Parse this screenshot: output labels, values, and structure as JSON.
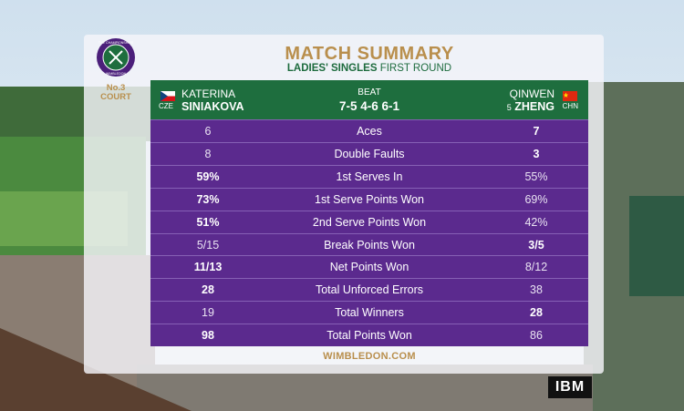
{
  "logo": {
    "top": "THE CHAMPIONSHIPS",
    "bottom": "WIMBLEDON"
  },
  "court": {
    "number": "No.3",
    "label": "COURT"
  },
  "header": {
    "title": "MATCH SUMMARY",
    "subtitle_bold": "LADIES' SINGLES",
    "subtitle": "FIRST ROUND"
  },
  "players": {
    "left": {
      "first": "KATERINA",
      "last": "SINIAKOVA",
      "country": "CZE"
    },
    "right": {
      "first": "QINWEN",
      "seed": "5",
      "last": "ZHENG",
      "country": "CHN"
    }
  },
  "result": {
    "verb": "BEAT",
    "score": "7-5 4-6 6-1"
  },
  "table": {
    "rows": [
      [
        "6",
        "Aces",
        "7"
      ],
      [
        "8",
        "Double Faults",
        "3"
      ],
      [
        "59%",
        "1st Serves In",
        "55%"
      ],
      [
        "73%",
        "1st Serve Points Won",
        "69%"
      ],
      [
        "51%",
        "2nd Serve Points Won",
        "42%"
      ],
      [
        "5/15",
        "Break Points Won",
        "3/5"
      ],
      [
        "11/13",
        "Net Points Won",
        "8/12"
      ],
      [
        "28",
        "Total Unforced Errors",
        "38"
      ],
      [
        "19",
        "Total Winners",
        "28"
      ],
      [
        "98",
        "Total Points Won",
        "86"
      ]
    ]
  },
  "footer": "WIMBLEDON.COM",
  "sponsor": "IBM"
}
